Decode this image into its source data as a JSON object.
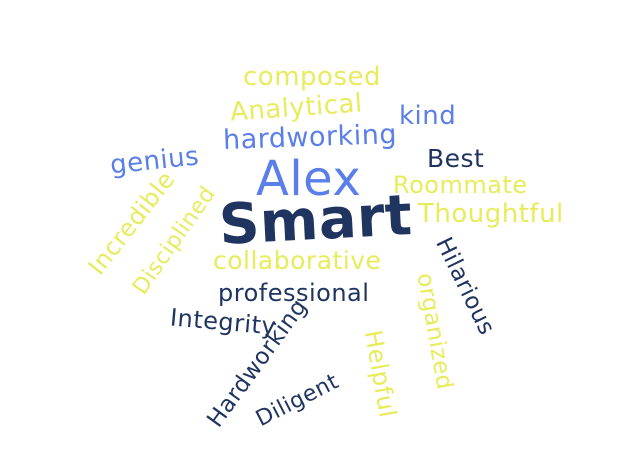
{
  "colors": {
    "yellow": "#e8ec5c",
    "blue": "#5b7fe8",
    "navy": "#1f3560",
    "background": "#ffffff"
  },
  "words": {
    "alex": "Alex",
    "smart": "Smart",
    "composed": "composed",
    "analytical": "Analytical",
    "kind": "kind",
    "hardworking_lower": "hardworking",
    "genius": "genius",
    "best": "Best",
    "roommate": "Roommate",
    "thoughtful": "Thoughtful",
    "incredible": "Incredible",
    "disciplined": "Disciplined",
    "collaborative": "collaborative",
    "professional": "professional",
    "integrity": "Integrity",
    "hilarious": "Hilarious",
    "organized": "organized",
    "hardworking_cap": "Hardworking",
    "helpful": "Helpful",
    "diligent": "Diligent"
  }
}
